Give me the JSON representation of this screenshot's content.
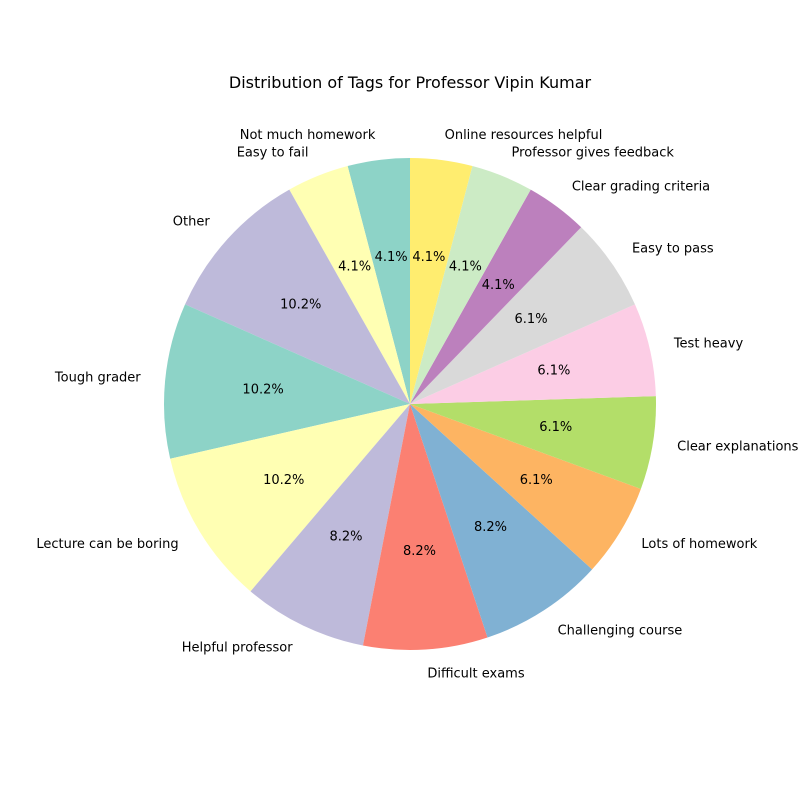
{
  "chart_data": {
    "type": "pie",
    "title": "Distribution of Tags for Professor Vipin Kumar",
    "start_angle_deg": 90,
    "direction": "counterclockwise",
    "categories": [
      "Not much homework",
      "Easy to fail",
      "Other",
      "Tough grader",
      "Lecture can be boring",
      "Helpful professor",
      "Difficult exams",
      "Challenging course",
      "Lots of homework",
      "Clear explanations",
      "Test heavy",
      "Easy to pass",
      "Clear grading criteria",
      "Professor gives feedback",
      "Online resources helpful"
    ],
    "values": [
      2,
      2,
      5,
      5,
      5,
      4,
      4,
      4,
      3,
      3,
      3,
      3,
      2,
      2,
      2
    ],
    "percent_labels": [
      "4.1%",
      "4.1%",
      "10.2%",
      "10.2%",
      "10.2%",
      "8.2%",
      "8.2%",
      "8.2%",
      "6.1%",
      "6.1%",
      "6.1%",
      "6.1%",
      "4.1%",
      "4.1%",
      "4.1%"
    ],
    "colors": [
      "#8dd3c7",
      "#ffffb3",
      "#bebada",
      "#8dd3c7",
      "#ffffb3",
      "#bebada",
      "#fb8072",
      "#80b1d3",
      "#fdb462",
      "#b3de69",
      "#fccde5",
      "#d9d9d9",
      "#bc80bd",
      "#ccebc5",
      "#ffed6f"
    ],
    "legend": "none"
  }
}
